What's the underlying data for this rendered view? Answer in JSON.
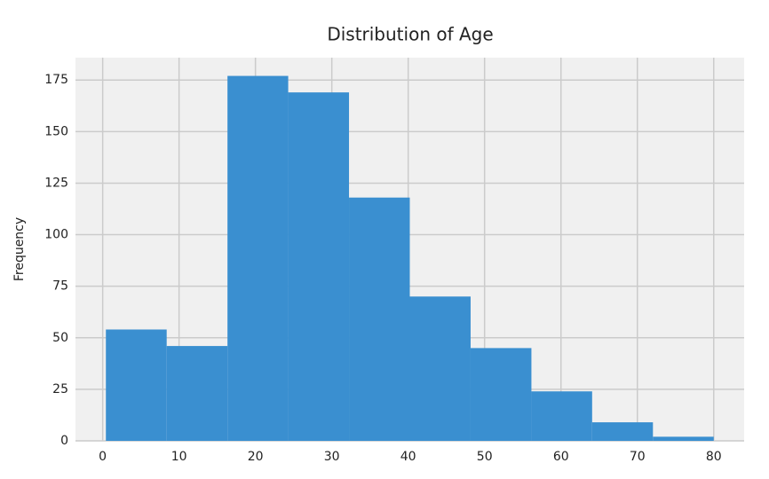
{
  "chart_data": {
    "type": "histogram",
    "title": "Distribution of Age",
    "ylabel": "Frequency",
    "bins": [
      0.42,
      8.38,
      16.34,
      24.29,
      32.25,
      40.21,
      48.17,
      56.13,
      64.08,
      72.04,
      80
    ],
    "counts": [
      54,
      46,
      177,
      169,
      118,
      70,
      45,
      24,
      9,
      2
    ],
    "color": "#3a8fd0",
    "xlim": [
      -3.56,
      83.98
    ],
    "xticks": [
      0,
      10,
      20,
      30,
      40,
      50,
      60,
      70,
      80
    ],
    "ylim": [
      0,
      185.85
    ],
    "yticks": [
      0,
      25,
      50,
      75,
      100,
      125,
      150,
      175
    ],
    "grid": true
  }
}
